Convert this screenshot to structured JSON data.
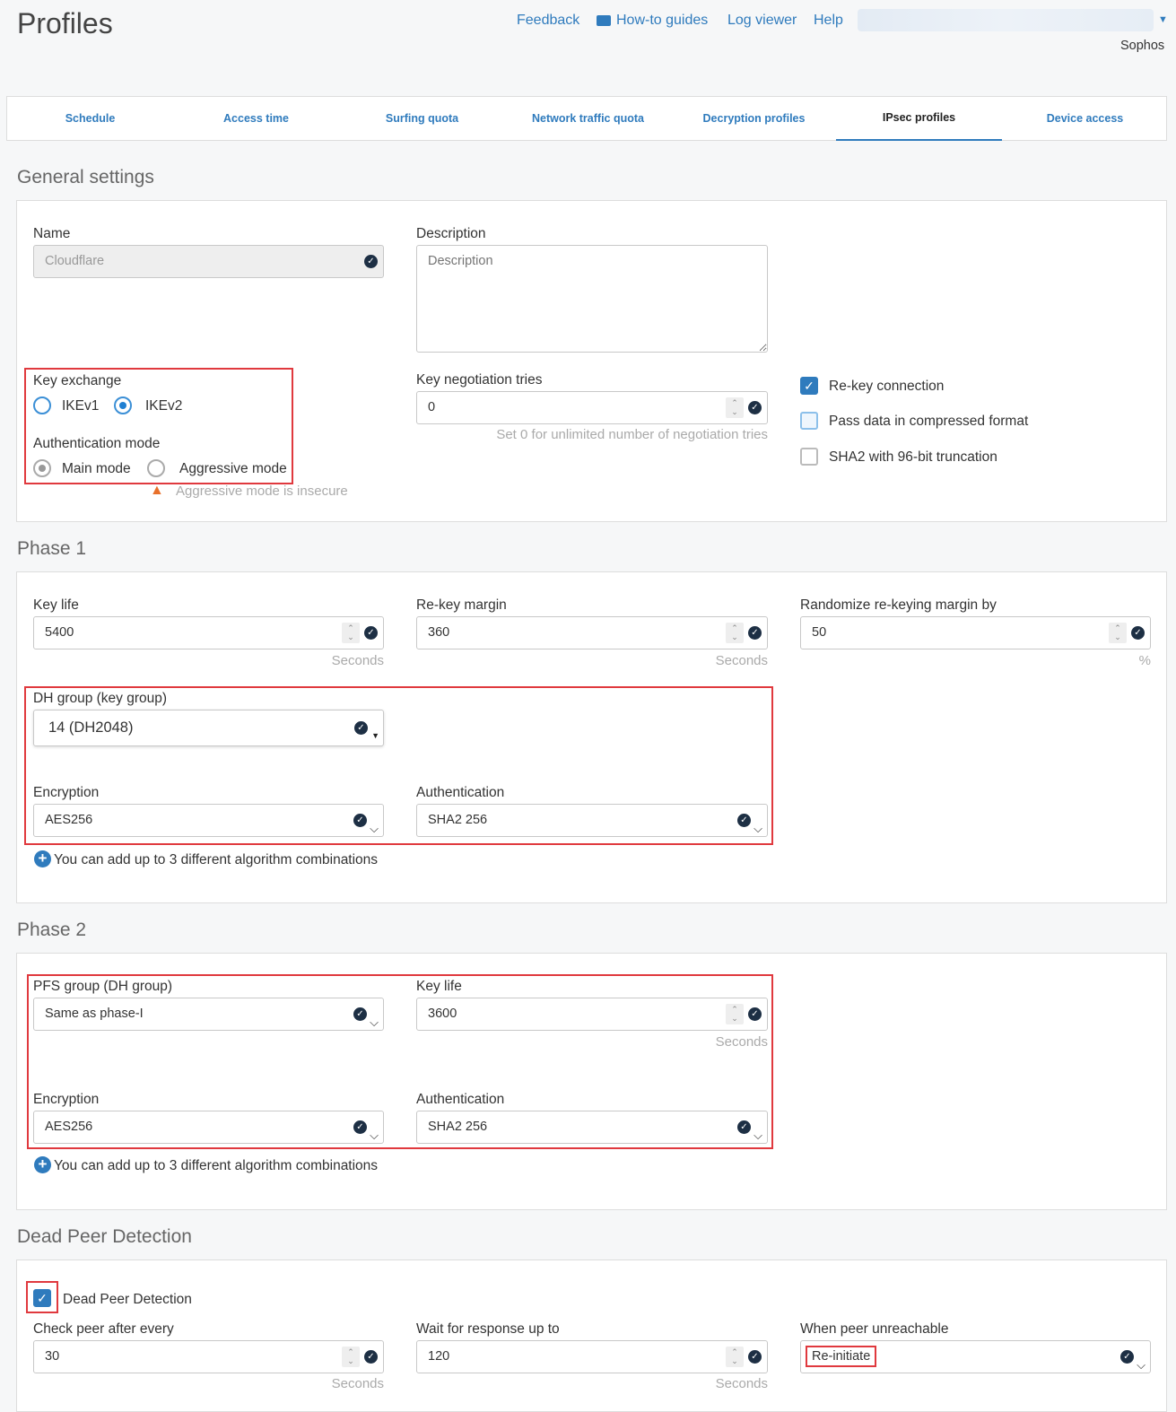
{
  "header": {
    "title": "Profiles",
    "links": {
      "feedback": "Feedback",
      "howto": "How-to guides",
      "log": "Log viewer",
      "help": "Help"
    },
    "user": "Sophos"
  },
  "tabs": [
    "Schedule",
    "Access time",
    "Surfing quota",
    "Network traffic quota",
    "Decryption profiles",
    "IPsec profiles",
    "Device access"
  ],
  "active_tab": "IPsec profiles",
  "general": {
    "title": "General settings",
    "name_label": "Name",
    "name_value": "Cloudflare",
    "desc_label": "Description",
    "desc_placeholder": "Description",
    "key_exchange_label": "Key exchange",
    "ikev1": "IKEv1",
    "ikev2": "IKEv2",
    "ike_selected": "IKEv2",
    "auth_mode_label": "Authentication mode",
    "main_mode": "Main mode",
    "aggressive_mode": "Aggressive mode",
    "auth_selected": "Main mode",
    "aggressive_warning": "Aggressive mode is insecure",
    "tries_label": "Key negotiation tries",
    "tries_value": "0",
    "tries_hint": "Set 0 for unlimited number of negotiation tries",
    "rekey": "Re-key connection",
    "rekey_checked": true,
    "compressed": "Pass data in compressed format",
    "compressed_checked": false,
    "sha2": "SHA2 with 96-bit truncation",
    "sha2_checked": false
  },
  "phase1": {
    "title": "Phase 1",
    "keylife_label": "Key life",
    "keylife": "5400",
    "rekey_margin_label": "Re-key margin",
    "rekey_margin": "360",
    "random_label": "Randomize re-keying margin by",
    "random": "50",
    "seconds": "Seconds",
    "percent": "%",
    "dh_label": "DH group (key group)",
    "dh": "14 (DH2048)",
    "enc_label": "Encryption",
    "enc": "AES256",
    "auth_label": "Authentication",
    "auth": "SHA2 256",
    "add": "You can add up to 3 different algorithm combinations"
  },
  "phase2": {
    "title": "Phase 2",
    "pfs_label": "PFS group (DH group)",
    "pfs": "Same as phase-I",
    "keylife_label": "Key life",
    "keylife": "3600",
    "seconds": "Seconds",
    "enc_label": "Encryption",
    "enc": "AES256",
    "auth_label": "Authentication",
    "auth": "SHA2 256",
    "add": "You can add up to 3 different algorithm combinations"
  },
  "dpd": {
    "title": "Dead Peer Detection",
    "enable": "Dead Peer Detection",
    "enabled": true,
    "check_label": "Check peer after every",
    "check": "30",
    "wait_label": "Wait for response up to",
    "wait": "120",
    "seconds": "Seconds",
    "unreach_label": "When peer unreachable",
    "unreach": "Re-initiate"
  }
}
